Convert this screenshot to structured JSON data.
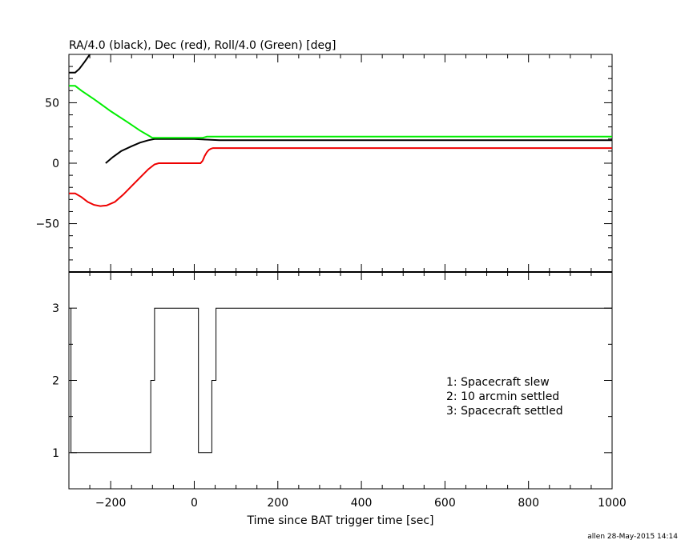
{
  "chart_data": [
    {
      "type": "line",
      "title": "RA/4.0 (black), Dec (red), Roll/4.0 (Green) [deg]",
      "xlim": [
        -300,
        1000
      ],
      "ylim": [
        -90,
        90
      ],
      "yticks": [
        -50,
        0,
        50
      ],
      "grid": false,
      "series": [
        {
          "color": "#000000",
          "segments": [
            [
              [
                -300,
                75
              ],
              [
                -285,
                75
              ],
              [
                -275,
                78
              ],
              [
                -262,
                84
              ],
              [
                -250,
                90
              ]
            ],
            [
              [
                -212,
                0
              ],
              [
                -195,
                5
              ],
              [
                -175,
                10
              ],
              [
                -150,
                14
              ],
              [
                -130,
                17
              ],
              [
                -110,
                19
              ],
              [
                -95,
                20
              ],
              [
                -80,
                20
              ],
              [
                -60,
                20
              ],
              [
                0,
                20
              ],
              [
                30,
                19.5
              ],
              [
                60,
                19
              ],
              [
                1000,
                19
              ]
            ]
          ]
        },
        {
          "color": "#00ee00",
          "segments": [
            [
              [
                -300,
                64
              ],
              [
                -285,
                64
              ],
              [
                -270,
                60
              ],
              [
                -240,
                53
              ],
              [
                -200,
                43
              ],
              [
                -160,
                34
              ],
              [
                -130,
                27
              ],
              [
                -110,
                23
              ],
              [
                -100,
                21
              ],
              [
                -80,
                21
              ],
              [
                0,
                21
              ],
              [
                20,
                21
              ],
              [
                30,
                22
              ],
              [
                1000,
                22
              ]
            ]
          ]
        },
        {
          "color": "#ee0000",
          "segments": [
            [
              [
                -300,
                -25
              ],
              [
                -285,
                -25
              ],
              [
                -270,
                -28
              ],
              [
                -255,
                -32
              ],
              [
                -240,
                -34.5
              ],
              [
                -225,
                -35.5
              ],
              [
                -210,
                -35
              ],
              [
                -190,
                -32
              ],
              [
                -170,
                -26
              ],
              [
                -150,
                -19
              ],
              [
                -130,
                -12
              ],
              [
                -110,
                -5
              ],
              [
                -95,
                -1
              ],
              [
                -85,
                0
              ],
              [
                0,
                0
              ],
              [
                15,
                0
              ],
              [
                20,
                2
              ],
              [
                25,
                6
              ],
              [
                30,
                9
              ],
              [
                35,
                11
              ],
              [
                40,
                12
              ],
              [
                45,
                12.5
              ],
              [
                60,
                12.5
              ],
              [
                1000,
                12.5
              ]
            ]
          ]
        }
      ]
    },
    {
      "type": "line",
      "xlim": [
        -300,
        1000
      ],
      "ylim": [
        0.5,
        3.5
      ],
      "yticks": [
        1,
        2,
        3
      ],
      "xticks": [
        -200,
        0,
        200,
        400,
        600,
        800,
        1000
      ],
      "xlabel": "Time since BAT trigger time [sec]",
      "grid": false,
      "series": [
        {
          "color": "#000000",
          "x": [
            -295,
            -295,
            -104,
            -104,
            -95,
            -95,
            10,
            10,
            42,
            42,
            52,
            52,
            1000
          ],
          "y": [
            3,
            1,
            1,
            2,
            2,
            3,
            3,
            1,
            1,
            2,
            2,
            3,
            3
          ]
        }
      ],
      "legend": {
        "placement": "right",
        "entries": [
          "1: Spacecraft slew",
          "2: 10 arcmin settled",
          "3: Spacecraft settled"
        ]
      }
    }
  ],
  "footer": "allen 28-May-2015 14:14"
}
